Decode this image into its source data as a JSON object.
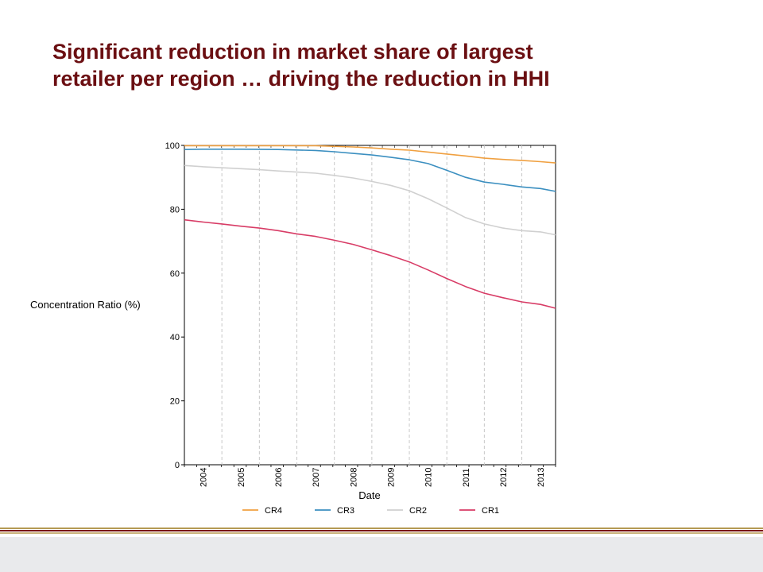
{
  "slide": {
    "title_line1": "Significant reduction in market share of largest",
    "title_line2": "retailer per region … driving the reduction in HHI"
  },
  "chart_data": {
    "type": "line",
    "xlabel": "Date",
    "ylabel": "Concentration Ratio (%)",
    "ylim": [
      0,
      100
    ],
    "yticks": [
      0,
      20,
      40,
      60,
      80,
      100
    ],
    "xlim": [
      2003.5,
      2013.4
    ],
    "year_ticks": [
      "2004",
      "2005",
      "2006",
      "2007",
      "2008",
      "2009",
      "2010",
      "2011",
      "2012",
      "2013"
    ],
    "grid": "vertical dashed at each year",
    "legend_position": "bottom",
    "series": [
      {
        "name": "CR4",
        "color": "#f0a040",
        "x": [
          2003.5,
          2004,
          2005,
          2006,
          2007,
          2008,
          2008.5,
          2009,
          2009.5,
          2010,
          2010.5,
          2011,
          2011.5,
          2012,
          2012.5,
          2013,
          2013.4
        ],
        "y": [
          99.9,
          99.9,
          99.9,
          99.9,
          99.9,
          99.5,
          99.2,
          98.8,
          98.5,
          97.9,
          97.3,
          96.7,
          96.0,
          95.6,
          95.3,
          94.9,
          94.5
        ]
      },
      {
        "name": "CR3",
        "color": "#3b8fc0",
        "x": [
          2003.5,
          2004,
          2005,
          2006,
          2007,
          2007.5,
          2008,
          2008.5,
          2009,
          2009.5,
          2010,
          2010.5,
          2011,
          2011.5,
          2012,
          2012.5,
          2013,
          2013.4
        ],
        "y": [
          98.7,
          98.8,
          98.8,
          98.7,
          98.4,
          98.0,
          97.5,
          97.0,
          96.3,
          95.5,
          94.3,
          92.2,
          90.0,
          88.5,
          87.8,
          87.0,
          86.5,
          85.6
        ]
      },
      {
        "name": "CR2",
        "color": "#d0d0d0",
        "x": [
          2003.5,
          2004,
          2005,
          2005.5,
          2006,
          2007,
          2007.5,
          2008,
          2008.5,
          2009,
          2009.5,
          2010,
          2010.5,
          2011,
          2011.5,
          2012,
          2012.5,
          2013,
          2013.4
        ],
        "y": [
          93.7,
          93.3,
          92.7,
          92.4,
          92.0,
          91.3,
          90.6,
          89.8,
          88.7,
          87.5,
          85.8,
          83.3,
          80.4,
          77.4,
          75.4,
          74.1,
          73.3,
          72.9,
          72.0
        ]
      },
      {
        "name": "CR1",
        "color": "#d83c66",
        "x": [
          2003.5,
          2004,
          2004.5,
          2005,
          2005.5,
          2006,
          2006.5,
          2007,
          2007.5,
          2008,
          2008.5,
          2009,
          2009.5,
          2010,
          2010.5,
          2011,
          2011.5,
          2012,
          2012.5,
          2013,
          2013.4
        ],
        "y": [
          76.7,
          76.0,
          75.4,
          74.7,
          74.1,
          73.3,
          72.3,
          71.5,
          70.3,
          69.0,
          67.3,
          65.5,
          63.5,
          61.0,
          58.3,
          55.8,
          53.7,
          52.3,
          51.0,
          50.2,
          49.0
        ]
      }
    ]
  }
}
